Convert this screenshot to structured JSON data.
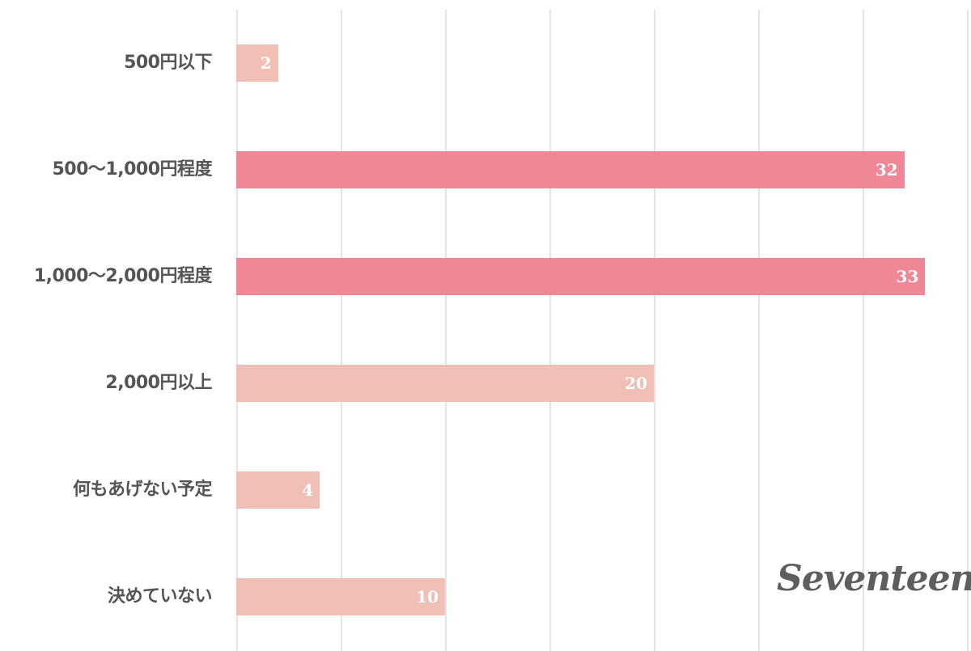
{
  "chart_data": {
    "type": "bar",
    "orientation": "horizontal",
    "title": "",
    "xlabel": "",
    "ylabel": "",
    "categories": [
      "500円以下",
      "500〜1,000円程度",
      "1,000〜2,000円程度",
      "2,000円以上",
      "何もあげない予定",
      "決めていない"
    ],
    "values": [
      2,
      32,
      33,
      20,
      4,
      10
    ],
    "xlim": [
      0,
      35
    ],
    "grid": true,
    "gridlines_at": [
      0,
      5,
      10,
      15,
      20,
      25,
      30,
      35
    ],
    "highlight_colors": {
      "top": "#f08796",
      "normal": "#f0bfb5"
    },
    "bar_colors": [
      "#f0bfb5",
      "#f08796",
      "#f08796",
      "#f0bfb5",
      "#f0bfb5",
      "#f0bfb5"
    ]
  },
  "rows": [
    {
      "label": "500円以下",
      "value": "2"
    },
    {
      "label": "500〜1,000円程度",
      "value": "32"
    },
    {
      "label": "1,000〜2,000円程度",
      "value": "33"
    },
    {
      "label": "2,000円以上",
      "value": "20"
    },
    {
      "label": "何もあげない予定",
      "value": "4"
    },
    {
      "label": "決めていない",
      "value": "10"
    }
  ],
  "logo": {
    "text": "Seventeen"
  }
}
